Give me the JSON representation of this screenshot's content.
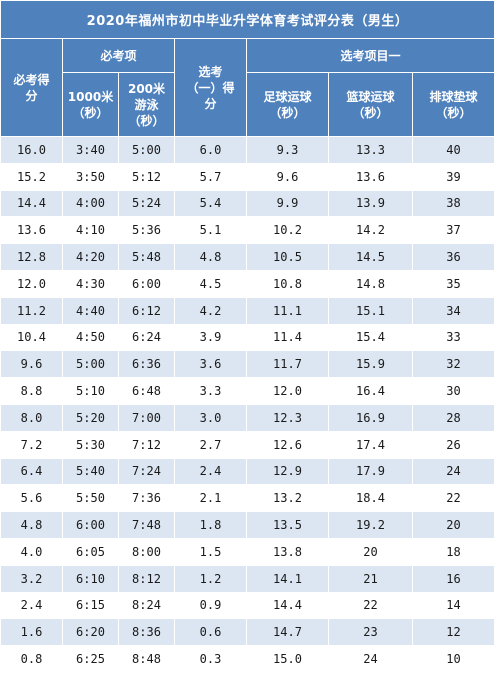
{
  "title": "2020年福州市初中毕业升学体育考试评分表（男生）",
  "headers": {
    "score_required": "必考得分",
    "required_items": "必考项",
    "run_1000": "1000米（秒）",
    "swim_200": "200米游泳（秒）",
    "optional1_score": "选考（一）得分",
    "optional1_items": "选考项目一",
    "football": "足球运球（秒）",
    "basketball": "篮球运球（秒）",
    "volleyball": "排球垫球（秒）"
  },
  "rows": [
    [
      "16.0",
      "3:40",
      "5:00",
      "6.0",
      "9.3",
      "13.3",
      "40"
    ],
    [
      "15.2",
      "3:50",
      "5:12",
      "5.7",
      "9.6",
      "13.6",
      "39"
    ],
    [
      "14.4",
      "4:00",
      "5:24",
      "5.4",
      "9.9",
      "13.9",
      "38"
    ],
    [
      "13.6",
      "4:10",
      "5:36",
      "5.1",
      "10.2",
      "14.2",
      "37"
    ],
    [
      "12.8",
      "4:20",
      "5:48",
      "4.8",
      "10.5",
      "14.5",
      "36"
    ],
    [
      "12.0",
      "4:30",
      "6:00",
      "4.5",
      "10.8",
      "14.8",
      "35"
    ],
    [
      "11.2",
      "4:40",
      "6:12",
      "4.2",
      "11.1",
      "15.1",
      "34"
    ],
    [
      "10.4",
      "4:50",
      "6:24",
      "3.9",
      "11.4",
      "15.4",
      "33"
    ],
    [
      "9.6",
      "5:00",
      "6:36",
      "3.6",
      "11.7",
      "15.9",
      "32"
    ],
    [
      "8.8",
      "5:10",
      "6:48",
      "3.3",
      "12.0",
      "16.4",
      "30"
    ],
    [
      "8.0",
      "5:20",
      "7:00",
      "3.0",
      "12.3",
      "16.9",
      "28"
    ],
    [
      "7.2",
      "5:30",
      "7:12",
      "2.7",
      "12.6",
      "17.4",
      "26"
    ],
    [
      "6.4",
      "5:40",
      "7:24",
      "2.4",
      "12.9",
      "17.9",
      "24"
    ],
    [
      "5.6",
      "5:50",
      "7:36",
      "2.1",
      "13.2",
      "18.4",
      "22"
    ],
    [
      "4.8",
      "6:00",
      "7:48",
      "1.8",
      "13.5",
      "19.2",
      "20"
    ],
    [
      "4.0",
      "6:05",
      "8:00",
      "1.5",
      "13.8",
      "20",
      "18"
    ],
    [
      "3.2",
      "6:10",
      "8:12",
      "1.2",
      "14.1",
      "21",
      "16"
    ],
    [
      "2.4",
      "6:15",
      "8:24",
      "0.9",
      "14.4",
      "22",
      "14"
    ],
    [
      "1.6",
      "6:20",
      "8:36",
      "0.6",
      "14.7",
      "23",
      "12"
    ],
    [
      "0.8",
      "6:25",
      "8:48",
      "0.3",
      "15.0",
      "24",
      "10"
    ]
  ],
  "colors": {
    "header_bg": "#4f81bd",
    "header_text": "#ffffff",
    "stripe": "#dce6f2",
    "plain": "#ffffff"
  }
}
